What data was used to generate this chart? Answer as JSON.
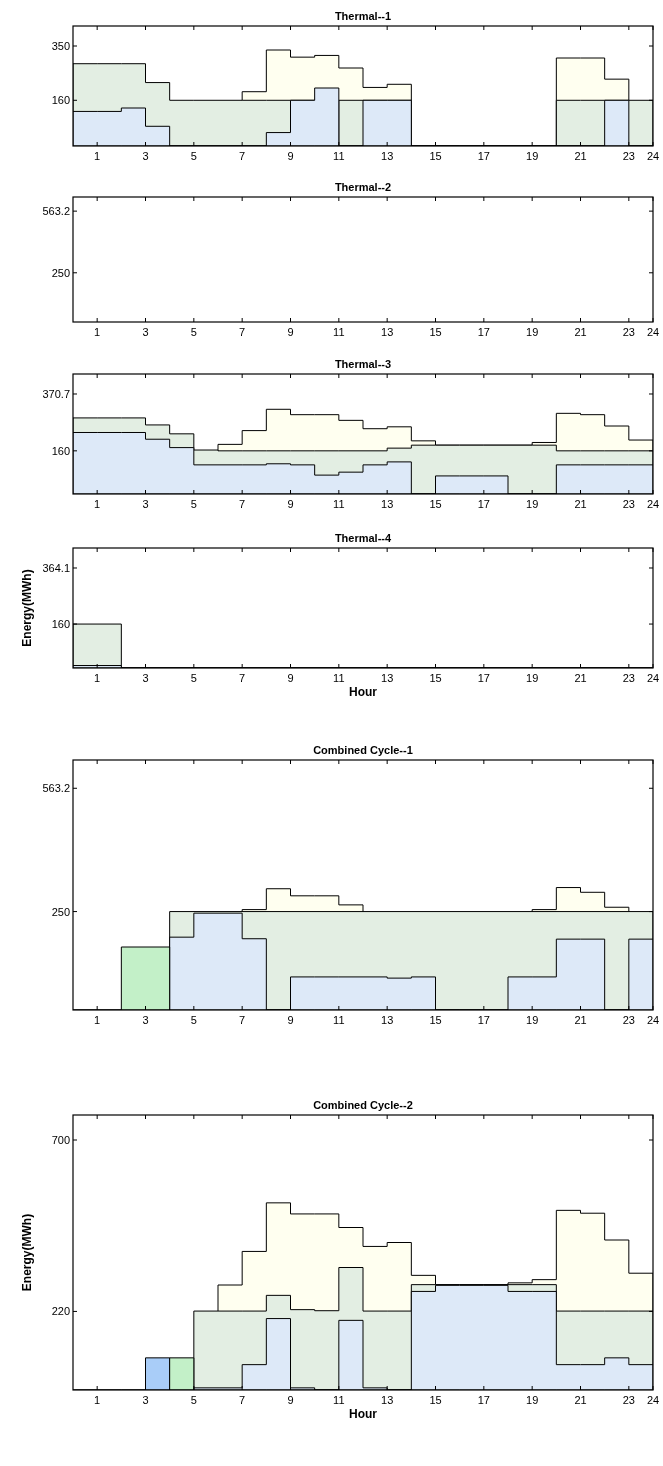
{
  "chart_data": [
    {
      "type": "area",
      "title": "Thermal--1",
      "x": [
        0,
        1,
        1,
        2,
        2,
        3,
        3,
        4,
        4,
        5,
        5,
        6,
        6,
        7,
        7,
        8,
        8,
        9,
        9,
        10,
        10,
        11,
        11,
        12,
        12,
        13,
        13,
        14,
        14,
        15,
        15,
        16,
        16,
        17,
        17,
        18,
        18,
        19,
        19,
        20,
        20,
        21,
        21,
        22,
        22,
        23,
        23,
        24
      ],
      "xlim": [
        0,
        24
      ],
      "xticks": [
        1,
        3,
        5,
        7,
        9,
        11,
        13,
        15,
        17,
        19,
        21,
        23,
        24
      ],
      "ylim": [
        0,
        420
      ],
      "yticks": [
        160,
        350
      ],
      "series": [
        {
          "color": "#fffff0",
          "values": [
            null,
            null,
            null,
            null,
            null,
            null,
            null,
            null,
            null,
            null,
            null,
            null,
            null,
            null,
            190,
            190,
            336,
            336,
            311,
            311,
            317,
            317,
            273,
            273,
            205,
            205,
            216,
            216,
            null,
            null,
            null,
            null,
            null,
            null,
            null,
            null,
            null,
            null,
            null,
            null,
            308,
            308,
            308,
            308,
            234,
            234,
            null,
            null
          ]
        },
        {
          "color": "#e3eee3",
          "values": [
            288,
            288,
            288,
            288,
            288,
            288,
            222,
            222,
            160,
            160,
            160,
            160,
            160,
            160,
            160,
            160,
            160,
            160,
            160,
            160,
            null,
            null,
            160,
            160,
            160,
            160,
            160,
            160,
            0,
            0,
            0,
            0,
            0,
            0,
            0,
            0,
            0,
            0,
            0,
            0,
            160,
            160,
            160,
            160,
            160,
            160,
            160,
            160
          ]
        },
        {
          "color": "#dde9f8",
          "values": [
            121,
            121,
            121,
            121,
            133,
            133,
            69,
            69,
            0,
            0,
            0,
            0,
            0,
            0,
            0,
            0,
            47,
            47,
            160,
            160,
            203,
            203,
            0,
            0,
            160,
            160,
            160,
            160,
            0,
            0,
            0,
            0,
            0,
            0,
            0,
            0,
            0,
            0,
            0,
            0,
            0,
            0,
            0,
            0,
            160,
            160,
            0,
            0
          ]
        }
      ]
    },
    {
      "type": "area",
      "title": "Thermal--2",
      "xlim": [
        0,
        24
      ],
      "xticks": [
        1,
        3,
        5,
        7,
        9,
        11,
        13,
        15,
        17,
        19,
        21,
        23,
        24
      ],
      "ylim": [
        0,
        635
      ],
      "yticks": [
        250,
        563.2
      ]
    },
    {
      "type": "area",
      "title": "Thermal--3",
      "x": [
        0,
        1,
        1,
        2,
        2,
        3,
        3,
        4,
        4,
        5,
        5,
        6,
        6,
        7,
        7,
        8,
        8,
        9,
        9,
        10,
        10,
        11,
        11,
        12,
        12,
        13,
        13,
        14,
        14,
        15,
        15,
        16,
        16,
        17,
        17,
        18,
        18,
        19,
        19,
        20,
        20,
        21,
        21,
        22,
        22,
        23,
        23,
        24
      ],
      "xlim": [
        0,
        24
      ],
      "xticks": [
        1,
        3,
        5,
        7,
        9,
        11,
        13,
        15,
        17,
        19,
        21,
        23,
        24
      ],
      "ylim": [
        0,
        444.8
      ],
      "yticks": [
        160,
        370.7
      ],
      "series": [
        {
          "color": "#fffff0",
          "values": [
            null,
            null,
            null,
            null,
            null,
            null,
            null,
            null,
            null,
            null,
            null,
            null,
            184,
            184,
            235,
            235,
            314,
            314,
            294,
            294,
            294,
            294,
            273,
            273,
            242,
            242,
            249,
            249,
            197,
            197,
            181,
            181,
            181,
            181,
            181,
            181,
            181,
            181,
            191,
            191,
            299,
            299,
            294,
            294,
            252,
            252,
            200,
            200
          ]
        },
        {
          "color": "#e3eee3",
          "values": [
            282,
            282,
            282,
            282,
            282,
            282,
            256,
            256,
            223,
            223,
            163,
            163,
            160,
            160,
            160,
            160,
            160,
            160,
            160,
            160,
            160,
            160,
            160,
            160,
            160,
            160,
            170,
            170,
            181,
            181,
            181,
            181,
            181,
            181,
            181,
            181,
            181,
            181,
            181,
            181,
            160,
            160,
            160,
            160,
            160,
            160,
            160,
            160
          ]
        },
        {
          "color": "#dde9f8",
          "values": [
            228,
            228,
            228,
            228,
            228,
            228,
            203,
            203,
            172,
            172,
            108,
            108,
            108,
            108,
            108,
            108,
            112,
            112,
            108,
            108,
            70,
            70,
            81,
            81,
            108,
            108,
            119,
            119,
            0,
            0,
            67,
            67,
            67,
            67,
            67,
            67,
            0,
            0,
            0,
            0,
            108,
            108,
            108,
            108,
            108,
            108,
            108,
            108
          ]
        }
      ]
    },
    {
      "type": "area",
      "title": "Thermal--4",
      "xlabel": "Hour",
      "ylabel": "Energy(MWh)",
      "xlim": [
        0,
        24
      ],
      "xticks": [
        1,
        3,
        5,
        7,
        9,
        11,
        13,
        15,
        17,
        19,
        21,
        23,
        24
      ],
      "ylim": [
        0,
        436.9
      ],
      "yticks": [
        160,
        364.1
      ],
      "series": [
        {
          "color": "#e3eee3",
          "x": [
            0,
            2,
            2,
            24
          ],
          "values": [
            160,
            160,
            0,
            0
          ]
        },
        {
          "color": "#dde9f8",
          "x": [
            0,
            2,
            2,
            24
          ],
          "values": [
            9,
            9,
            0,
            0
          ]
        }
      ]
    },
    {
      "type": "area",
      "title": "Combined Cycle--1",
      "x": [
        0,
        1,
        1,
        2,
        2,
        3,
        3,
        4,
        4,
        5,
        5,
        6,
        6,
        7,
        7,
        8,
        8,
        9,
        9,
        10,
        10,
        11,
        11,
        12,
        12,
        13,
        13,
        14,
        14,
        15,
        15,
        16,
        16,
        17,
        17,
        18,
        18,
        19,
        19,
        20,
        20,
        21,
        21,
        22,
        22,
        23,
        23,
        24
      ],
      "xlim": [
        0,
        24
      ],
      "xticks": [
        1,
        3,
        5,
        7,
        9,
        11,
        13,
        15,
        17,
        19,
        21,
        23,
        24
      ],
      "ylim": [
        0,
        635
      ],
      "yticks": [
        250,
        563.2
      ],
      "series": [
        {
          "color": "#fffff0",
          "values": [
            null,
            null,
            null,
            null,
            null,
            null,
            null,
            null,
            null,
            null,
            null,
            null,
            null,
            null,
            255,
            255,
            308,
            308,
            290,
            290,
            290,
            290,
            267,
            267,
            null,
            null,
            null,
            null,
            null,
            null,
            null,
            null,
            null,
            null,
            null,
            null,
            null,
            null,
            255,
            255,
            311,
            311,
            299,
            299,
            261,
            261,
            null,
            null
          ]
        },
        {
          "color": "#e3eee3",
          "x": [
            4,
            24
          ],
          "values": [
            250,
            250
          ]
        },
        {
          "color": "#dde9f8",
          "values": [
            0,
            0,
            0,
            0,
            0,
            0,
            0,
            0,
            185,
            185,
            246,
            246,
            246,
            246,
            181,
            181,
            0,
            0,
            84,
            84,
            84,
            84,
            84,
            84,
            84,
            84,
            81,
            81,
            84,
            84,
            0,
            0,
            0,
            0,
            0,
            0,
            84,
            84,
            84,
            84,
            180,
            180,
            180,
            180,
            0,
            0,
            180,
            180
          ]
        },
        {
          "color": "#c3f0c8",
          "x": [
            2,
            4
          ],
          "values": [
            160,
            160
          ]
        }
      ]
    },
    {
      "type": "area",
      "title": "Combined Cycle--2",
      "xlabel": "Hour",
      "ylabel": "Energy(MWh)",
      "x": [
        0,
        1,
        1,
        2,
        2,
        3,
        3,
        4,
        4,
        5,
        5,
        6,
        6,
        7,
        7,
        8,
        8,
        9,
        9,
        10,
        10,
        11,
        11,
        12,
        12,
        13,
        13,
        14,
        14,
        15,
        15,
        16,
        16,
        17,
        17,
        18,
        18,
        19,
        19,
        20,
        20,
        21,
        21,
        22,
        22,
        23,
        23,
        24
      ],
      "xlim": [
        0,
        24
      ],
      "xticks": [
        1,
        3,
        5,
        7,
        9,
        11,
        13,
        15,
        17,
        19,
        21,
        23,
        24
      ],
      "ylim": [
        0,
        770
      ],
      "yticks": [
        220,
        700
      ],
      "series": [
        {
          "color": "#fffff0",
          "values": [
            null,
            null,
            null,
            null,
            null,
            null,
            null,
            null,
            null,
            null,
            null,
            null,
            294,
            294,
            388,
            388,
            524,
            524,
            493,
            493,
            493,
            493,
            455,
            455,
            402,
            402,
            413,
            413,
            321,
            321,
            295,
            295,
            295,
            295,
            295,
            295,
            300,
            300,
            309,
            309,
            503,
            503,
            495,
            495,
            420,
            420,
            327,
            327
          ]
        },
        {
          "color": "#e3eee3",
          "values": [
            null,
            null,
            null,
            null,
            null,
            null,
            null,
            null,
            null,
            null,
            221,
            221,
            221,
            221,
            221,
            221,
            265,
            265,
            225,
            225,
            222,
            222,
            343,
            343,
            221,
            221,
            221,
            221,
            295,
            295,
            295,
            295,
            295,
            295,
            295,
            295,
            295,
            295,
            295,
            295,
            221,
            221,
            221,
            221,
            221,
            221,
            221,
            221
          ]
        },
        {
          "color": "#dde9f8",
          "values": [
            0,
            0,
            0,
            0,
            0,
            0,
            0,
            0,
            0,
            0,
            6,
            6,
            6,
            6,
            71,
            71,
            200,
            200,
            6,
            6,
            0,
            0,
            195,
            195,
            6,
            6,
            0,
            0,
            276,
            276,
            293,
            293,
            293,
            293,
            293,
            293,
            276,
            276,
            276,
            276,
            71,
            71,
            71,
            71,
            90,
            90,
            71,
            71
          ]
        },
        {
          "color": "#a9cdf8",
          "x": [
            3,
            4
          ],
          "values": [
            90,
            90
          ]
        },
        {
          "color": "#c3f0c8",
          "x": [
            4,
            5
          ],
          "values": [
            90,
            90
          ]
        }
      ]
    }
  ]
}
